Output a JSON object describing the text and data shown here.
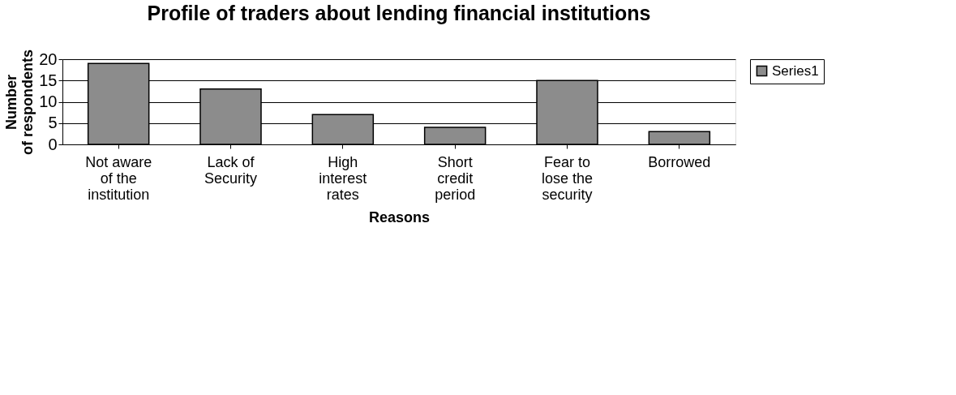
{
  "chart_data": {
    "type": "bar",
    "title": "Profile of traders about lending financial institutions",
    "xlabel": "Reasons",
    "ylabel": "Number of respondents",
    "categories": [
      "Not aware of the institution",
      "Lack of Security",
      "High interest rates",
      "Short credit period",
      "Fear to lose the security",
      "Borrowed"
    ],
    "series": [
      {
        "name": "Series1",
        "color": "#8c8c8c",
        "values": [
          19,
          13,
          7,
          4,
          15,
          3
        ]
      }
    ],
    "ylim": [
      0,
      20
    ],
    "yticks": [
      0,
      5,
      10,
      15,
      20
    ],
    "grid": "y",
    "legend": "right"
  }
}
